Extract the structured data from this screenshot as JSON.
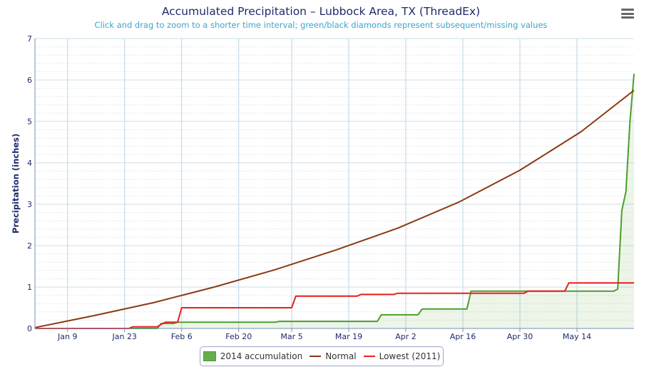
{
  "chart_data": {
    "type": "line",
    "title": "Accumulated Precipitation – Lubbock Area, TX (ThreadEx)",
    "subtitle": "Click and drag to zoom to a shorter time interval; green/black diamonds represent subsequent/missing values",
    "ylabel": "Precipitation (inches)",
    "xlabel": "",
    "ylim": [
      0,
      7
    ],
    "y_ticks": [
      0,
      1,
      2,
      3,
      4,
      5,
      6,
      7
    ],
    "x_day_range": [
      1,
      148
    ],
    "x_ticks": [
      {
        "label": "Jan 9",
        "day": 9
      },
      {
        "label": "Jan 23",
        "day": 23
      },
      {
        "label": "Feb 6",
        "day": 37
      },
      {
        "label": "Feb 20",
        "day": 51
      },
      {
        "label": "Mar 5",
        "day": 64
      },
      {
        "label": "Mar 19",
        "day": 78
      },
      {
        "label": "Apr 2",
        "day": 92
      },
      {
        "label": "Apr 16",
        "day": 106
      },
      {
        "label": "Apr 30",
        "day": 120
      },
      {
        "label": "May 14",
        "day": 134
      }
    ],
    "grid": true,
    "legend_position": "bottom-center",
    "series": [
      {
        "name": "2014 accumulation",
        "color": "#4aa02c",
        "fill": "rgba(74,160,44,0.10)",
        "points": [
          [
            1,
            0
          ],
          [
            31,
            0
          ],
          [
            32,
            0.12
          ],
          [
            35,
            0.12
          ],
          [
            36,
            0.15
          ],
          [
            60,
            0.15
          ],
          [
            61,
            0.17
          ],
          [
            85,
            0.17
          ],
          [
            86,
            0.33
          ],
          [
            95,
            0.33
          ],
          [
            96,
            0.47
          ],
          [
            107,
            0.47
          ],
          [
            108,
            0.9
          ],
          [
            143,
            0.9
          ],
          [
            144,
            0.95
          ],
          [
            145,
            2.85
          ],
          [
            146,
            3.3
          ],
          [
            147,
            5.0
          ],
          [
            148,
            6.15
          ]
        ]
      },
      {
        "name": "Normal",
        "color": "#8b3a12",
        "points": [
          [
            1,
            0.02
          ],
          [
            15,
            0.3
          ],
          [
            30,
            0.62
          ],
          [
            45,
            1.0
          ],
          [
            60,
            1.42
          ],
          [
            75,
            1.9
          ],
          [
            90,
            2.42
          ],
          [
            105,
            3.05
          ],
          [
            120,
            3.82
          ],
          [
            135,
            4.75
          ],
          [
            148,
            5.75
          ]
        ]
      },
      {
        "name": "Lowest (2011)",
        "color": "#e81f1f",
        "points": [
          [
            1,
            0
          ],
          [
            24,
            0
          ],
          [
            25,
            0.04
          ],
          [
            31,
            0.04
          ],
          [
            32,
            0.1
          ],
          [
            33,
            0.15
          ],
          [
            36,
            0.15
          ],
          [
            37,
            0.5
          ],
          [
            64,
            0.5
          ],
          [
            65,
            0.78
          ],
          [
            80,
            0.78
          ],
          [
            81,
            0.82
          ],
          [
            89,
            0.82
          ],
          [
            90,
            0.85
          ],
          [
            121,
            0.85
          ],
          [
            122,
            0.9
          ],
          [
            131,
            0.9
          ],
          [
            132,
            1.1
          ],
          [
            148,
            1.1
          ]
        ]
      }
    ]
  },
  "legend": {
    "items": [
      {
        "label": "2014 accumulation"
      },
      {
        "label": "Normal"
      },
      {
        "label": "Lowest (2011)"
      }
    ]
  }
}
